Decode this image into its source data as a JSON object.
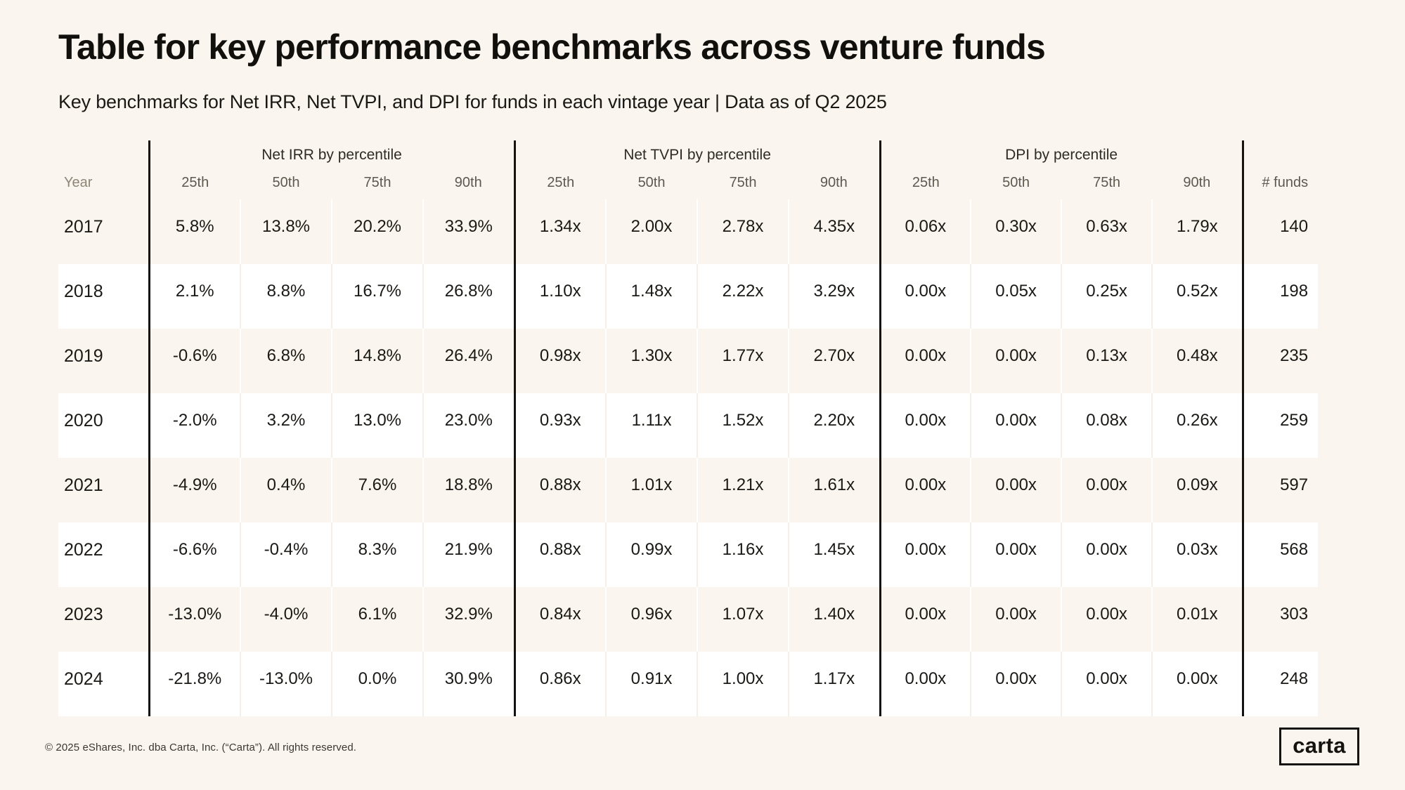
{
  "header": {
    "title": "Table for key performance benchmarks across venture funds",
    "subtitle": "Key benchmarks for Net IRR, Net TVPI, and DPI for funds in each vintage year | Data as of Q2 2025"
  },
  "footer": {
    "copyright": "© 2025 eShares, Inc. dba Carta, Inc. (“Carta”). All rights reserved.",
    "logo_text": "carta"
  },
  "colors": {
    "background": "#faf5ee",
    "row_alt_white": "#ffffff",
    "divider": "#15130f",
    "text": "#1b1916",
    "muted_header": "#5d594f",
    "year_header": "#8c8679"
  },
  "chart_data": {
    "type": "table",
    "title": "Table for key performance benchmarks across venture funds",
    "row_header": "Year",
    "funds_header": "# funds",
    "column_groups": [
      {
        "key": "irr",
        "label": "Net IRR by percentile",
        "columns": [
          "25th",
          "50th",
          "75th",
          "90th"
        ]
      },
      {
        "key": "tvpi",
        "label": "Net TVPI by percentile",
        "columns": [
          "25th",
          "50th",
          "75th",
          "90th"
        ]
      },
      {
        "key": "dpi",
        "label": "DPI by percentile",
        "columns": [
          "25th",
          "50th",
          "75th",
          "90th"
        ]
      }
    ],
    "rows": [
      {
        "year": "2017",
        "irr": [
          "5.8%",
          "13.8%",
          "20.2%",
          "33.9%"
        ],
        "tvpi": [
          "1.34x",
          "2.00x",
          "2.78x",
          "4.35x"
        ],
        "dpi": [
          "0.06x",
          "0.30x",
          "0.63x",
          "1.79x"
        ],
        "funds": "140"
      },
      {
        "year": "2018",
        "irr": [
          "2.1%",
          "8.8%",
          "16.7%",
          "26.8%"
        ],
        "tvpi": [
          "1.10x",
          "1.48x",
          "2.22x",
          "3.29x"
        ],
        "dpi": [
          "0.00x",
          "0.05x",
          "0.25x",
          "0.52x"
        ],
        "funds": "198"
      },
      {
        "year": "2019",
        "irr": [
          "-0.6%",
          "6.8%",
          "14.8%",
          "26.4%"
        ],
        "tvpi": [
          "0.98x",
          "1.30x",
          "1.77x",
          "2.70x"
        ],
        "dpi": [
          "0.00x",
          "0.00x",
          "0.13x",
          "0.48x"
        ],
        "funds": "235"
      },
      {
        "year": "2020",
        "irr": [
          "-2.0%",
          "3.2%",
          "13.0%",
          "23.0%"
        ],
        "tvpi": [
          "0.93x",
          "1.11x",
          "1.52x",
          "2.20x"
        ],
        "dpi": [
          "0.00x",
          "0.00x",
          "0.08x",
          "0.26x"
        ],
        "funds": "259"
      },
      {
        "year": "2021",
        "irr": [
          "-4.9%",
          "0.4%",
          "7.6%",
          "18.8%"
        ],
        "tvpi": [
          "0.88x",
          "1.01x",
          "1.21x",
          "1.61x"
        ],
        "dpi": [
          "0.00x",
          "0.00x",
          "0.00x",
          "0.09x"
        ],
        "funds": "597"
      },
      {
        "year": "2022",
        "irr": [
          "-6.6%",
          "-0.4%",
          "8.3%",
          "21.9%"
        ],
        "tvpi": [
          "0.88x",
          "0.99x",
          "1.16x",
          "1.45x"
        ],
        "dpi": [
          "0.00x",
          "0.00x",
          "0.00x",
          "0.03x"
        ],
        "funds": "568"
      },
      {
        "year": "2023",
        "irr": [
          "-13.0%",
          "-4.0%",
          "6.1%",
          "32.9%"
        ],
        "tvpi": [
          "0.84x",
          "0.96x",
          "1.07x",
          "1.40x"
        ],
        "dpi": [
          "0.00x",
          "0.00x",
          "0.00x",
          "0.01x"
        ],
        "funds": "303"
      },
      {
        "year": "2024",
        "irr": [
          "-21.8%",
          "-13.0%",
          "0.0%",
          "30.9%"
        ],
        "tvpi": [
          "0.86x",
          "0.91x",
          "1.00x",
          "1.17x"
        ],
        "dpi": [
          "0.00x",
          "0.00x",
          "0.00x",
          "0.00x"
        ],
        "funds": "248"
      }
    ]
  }
}
